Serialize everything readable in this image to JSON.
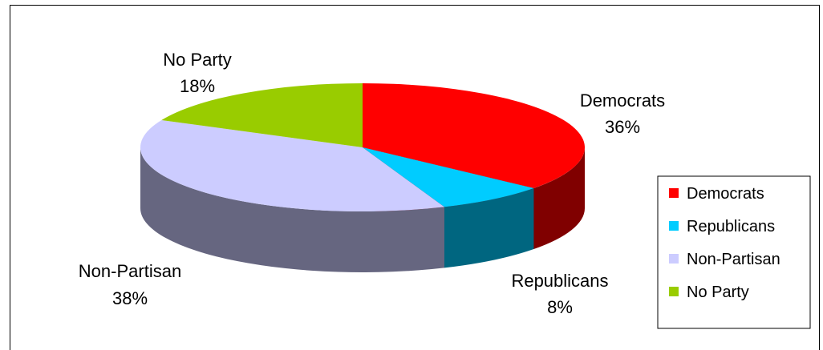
{
  "chart_data": {
    "type": "pie",
    "style": "3d-pie",
    "categories": [
      "Democrats",
      "Republicans",
      "Non-Partisan",
      "No Party"
    ],
    "values": [
      36,
      8,
      38,
      18
    ],
    "value_labels": [
      "36%",
      "8%",
      "38%",
      "18%"
    ],
    "colors": [
      "#ff0000",
      "#00ccff",
      "#ccccff",
      "#99cc00"
    ],
    "side_colors": [
      "#800000",
      "#006680",
      "#666680",
      "#4d6600"
    ],
    "legend": {
      "placement": "right",
      "entries": [
        "Democrats",
        "Republicans",
        "Non-Partisan",
        "No Party"
      ]
    }
  }
}
